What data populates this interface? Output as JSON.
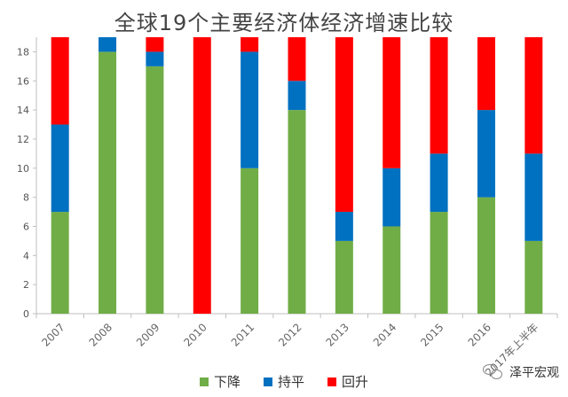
{
  "chart_data": {
    "type": "bar",
    "stacked": true,
    "title": "全球19个主要经济体经济增速比较",
    "categories": [
      "2007",
      "2008",
      "2009",
      "2010",
      "2011",
      "2012",
      "2013",
      "2014",
      "2015",
      "2016",
      "2017年上半年"
    ],
    "series": [
      {
        "name": "下降",
        "color": "#70AD47",
        "values": [
          7,
          18,
          17,
          0,
          10,
          14,
          5,
          6,
          7,
          8,
          5
        ]
      },
      {
        "name": "持平",
        "color": "#0070C0",
        "values": [
          6,
          1,
          1,
          0,
          8,
          2,
          2,
          4,
          4,
          6,
          6
        ]
      },
      {
        "name": "回升",
        "color": "#FF0000",
        "values": [
          6,
          0,
          1,
          19,
          1,
          3,
          12,
          9,
          8,
          5,
          8
        ]
      }
    ],
    "ylim": [
      0,
      19
    ],
    "yticks": [
      0,
      2,
      4,
      6,
      8,
      10,
      12,
      14,
      16,
      18
    ],
    "xlabel": "",
    "ylabel": "",
    "grid": false,
    "legend_position": "bottom"
  },
  "legend": {
    "items": [
      "下降",
      "持平",
      "回升"
    ]
  },
  "watermark": {
    "text": "泽平宏观"
  }
}
